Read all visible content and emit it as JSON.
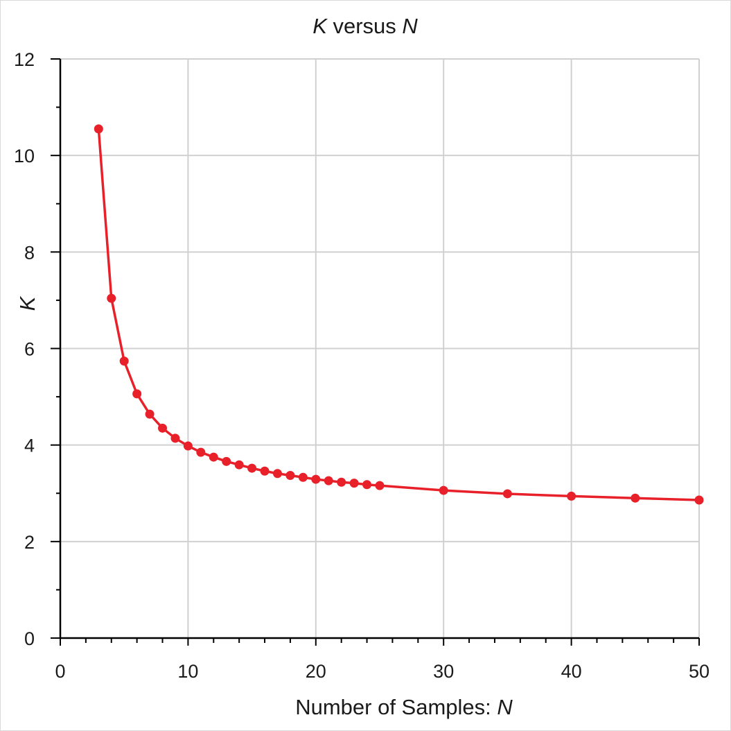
{
  "chart_data": {
    "type": "line",
    "title": {
      "var1": "K",
      "middle": " versus ",
      "var2": "N"
    },
    "xlabel": {
      "prefix": "Number of Samples: ",
      "var": "N"
    },
    "ylabel": "K",
    "xlim": [
      0,
      50
    ],
    "ylim": [
      0,
      12
    ],
    "x_ticks": [
      0,
      10,
      20,
      30,
      40,
      50
    ],
    "y_ticks": [
      0,
      2,
      4,
      6,
      8,
      10,
      12
    ],
    "x_minor_step": 2,
    "y_minor_step": 1,
    "grid": true,
    "markers": true,
    "series": [
      {
        "color": "#e8202a",
        "x": [
          3,
          4,
          5,
          6,
          7,
          8,
          9,
          10,
          11,
          12,
          13,
          14,
          15,
          16,
          17,
          18,
          19,
          20,
          21,
          22,
          23,
          24,
          25,
          30,
          35,
          40,
          45,
          50
        ],
        "y": [
          10.55,
          7.04,
          5.74,
          5.06,
          4.64,
          4.35,
          4.14,
          3.98,
          3.85,
          3.75,
          3.66,
          3.59,
          3.52,
          3.46,
          3.41,
          3.37,
          3.33,
          3.29,
          3.26,
          3.23,
          3.21,
          3.18,
          3.16,
          3.06,
          2.99,
          2.94,
          2.9,
          2.86
        ]
      }
    ]
  }
}
